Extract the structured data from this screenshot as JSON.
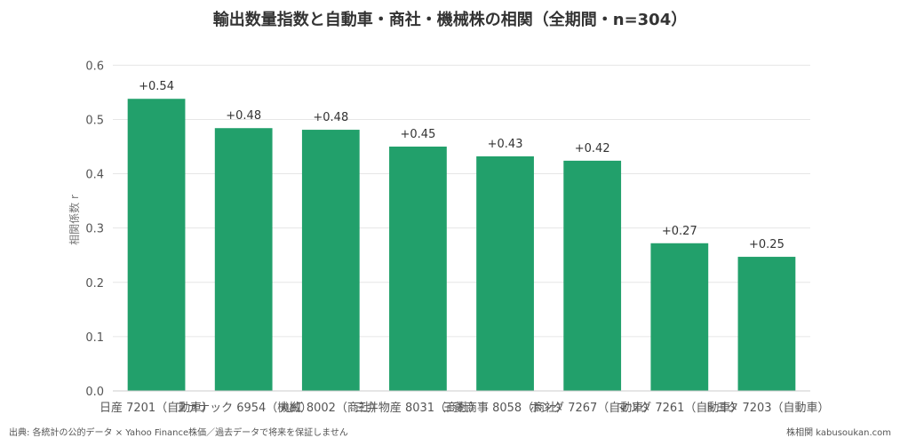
{
  "chart_data": {
    "type": "bar",
    "title": "輸出数量指数と自動車・商社・機械株の相関（全期間・n=304）",
    "ylabel": "相関係数 r",
    "xlabel": "",
    "ylim": [
      0,
      0.63
    ],
    "yticks": [
      "0.0",
      "0.1",
      "0.2",
      "0.3",
      "0.4",
      "0.5",
      "0.6"
    ],
    "grid": true,
    "categories": [
      "日産 7201（自動車）",
      "ファナック 6954（機械）",
      "丸紅 8002（商社）",
      "三井物産 8031（商社）",
      "三菱商事 8058（商社）",
      "ホンダ 7267（自動車）",
      "マツダ 7261（自動車）",
      "トヨタ 7203（自動車）"
    ],
    "values": [
      0.538,
      0.484,
      0.481,
      0.45,
      0.432,
      0.424,
      0.272,
      0.247
    ],
    "value_labels": [
      "+0.54",
      "+0.48",
      "+0.48",
      "+0.45",
      "+0.43",
      "+0.42",
      "+0.27",
      "+0.25"
    ],
    "bar_color": "#22a06b"
  },
  "footer": {
    "source": "出典: 各統計の公的データ × Yahoo Finance株価／過去データで将来を保証しません",
    "credit": "株相関 kabusoukan.com"
  }
}
